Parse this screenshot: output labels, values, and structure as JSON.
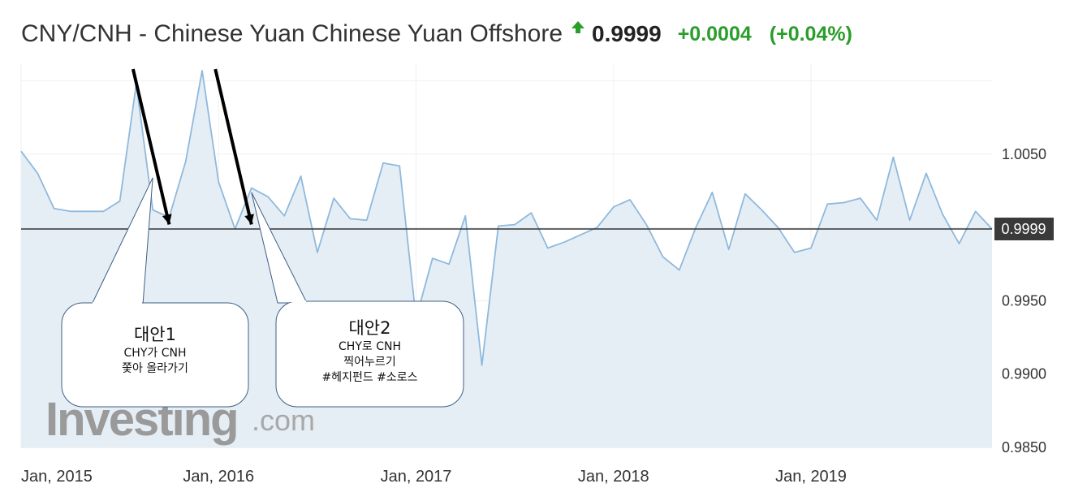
{
  "header": {
    "title": "CNY/CNH - Chinese Yuan Chinese Yuan Offshore",
    "price": "0.9999",
    "change": "+0.0004",
    "change_pct": "(+0.04%)",
    "up_color": "#2a9d2a",
    "direction_icon": "up-arrow-icon"
  },
  "chart_data": {
    "type": "area",
    "title": "CNY/CNH - Chinese Yuan Chinese Yuan Offshore",
    "xlabel": "",
    "ylabel": "",
    "ylim": [
      0.985,
      1.0112
    ],
    "yticks": [
      1.005,
      0.995,
      0.99,
      0.985
    ],
    "ytick_labels": [
      "1.0050",
      "0.9950",
      "0.9900",
      "0.9850"
    ],
    "xlim": [
      "2015-01",
      "2019-12"
    ],
    "xticks": [
      "2015-01",
      "2016-01",
      "2017-01",
      "2018-01",
      "2019-01"
    ],
    "xtick_labels": [
      "Jan, 2015",
      "Jan, 2016",
      "Jan, 2017",
      "Jan, 2018",
      "Jan, 2019"
    ],
    "grid": true,
    "current_value": 0.9999,
    "current_label": "0.9999",
    "line_color": "#8fb9dd",
    "fill_color": "#e6eef5",
    "series": [
      {
        "x": [
          "2015-01",
          "2015-02",
          "2015-03",
          "2015-04",
          "2015-05",
          "2015-06",
          "2015-07",
          "2015-08",
          "2015-09",
          "2015-10",
          "2015-11",
          "2015-12",
          "2016-01",
          "2016-02",
          "2016-03",
          "2016-04",
          "2016-05",
          "2016-06",
          "2016-07",
          "2016-08",
          "2016-09",
          "2016-10",
          "2016-11",
          "2016-12",
          "2017-01",
          "2017-02",
          "2017-03",
          "2017-04",
          "2017-05",
          "2017-06",
          "2017-07",
          "2017-08",
          "2017-09",
          "2017-10",
          "2017-11",
          "2017-12",
          "2018-01",
          "2018-02",
          "2018-03",
          "2018-04",
          "2018-05",
          "2018-06",
          "2018-07",
          "2018-08",
          "2018-09",
          "2018-10",
          "2018-11",
          "2018-12",
          "2019-01",
          "2019-02",
          "2019-03",
          "2019-04",
          "2019-05",
          "2019-06",
          "2019-07",
          "2019-08",
          "2019-09",
          "2019-10",
          "2019-11",
          "2019-12"
        ],
        "values": [
          1.0052,
          1.0037,
          1.0013,
          1.0011,
          1.0011,
          1.0011,
          1.0018,
          1.0098,
          1.0012,
          1.0007,
          1.0045,
          1.0107,
          1.0031,
          0.9999,
          1.0027,
          1.0021,
          1.0008,
          1.0035,
          0.9983,
          1.002,
          1.0006,
          1.0005,
          1.0044,
          1.0042,
          0.9938,
          0.9979,
          0.9975,
          1.0008,
          0.9906,
          1.0001,
          1.0002,
          1.001,
          0.9986,
          0.999,
          0.9995,
          1.0,
          1.0014,
          1.0019,
          1.0002,
          0.998,
          0.9971,
          1.0,
          1.0024,
          0.9985,
          1.0023,
          1.0012,
          1.0,
          0.9983,
          0.9986,
          1.0016,
          1.0017,
          1.002,
          1.0005,
          1.0048,
          1.0005,
          1.0037,
          1.0009,
          0.9989,
          1.0011,
          0.9999
        ]
      }
    ]
  },
  "annotations": {
    "arrow1": {
      "from": [
        "2015-08",
        1.0107
      ],
      "to": [
        "2015-10",
        1.0001
      ]
    },
    "arrow2": {
      "from": [
        "2016-01",
        1.0107
      ],
      "to": [
        "2016-03",
        1.0001
      ]
    },
    "callout1": {
      "anchor": [
        "2015-09",
        1.0034
      ],
      "title": "대안1",
      "lines": [
        "CHY가 CNH",
        "쫓아 올라가기"
      ]
    },
    "callout2": {
      "anchor": [
        "2016-03",
        1.0024
      ],
      "title": "대안2",
      "lines": [
        "CHY로 CNH",
        "찍어누르기",
        "#헤지펀드 #소로스"
      ]
    }
  },
  "watermark": {
    "text1": "Investing",
    "text2": ".com"
  }
}
